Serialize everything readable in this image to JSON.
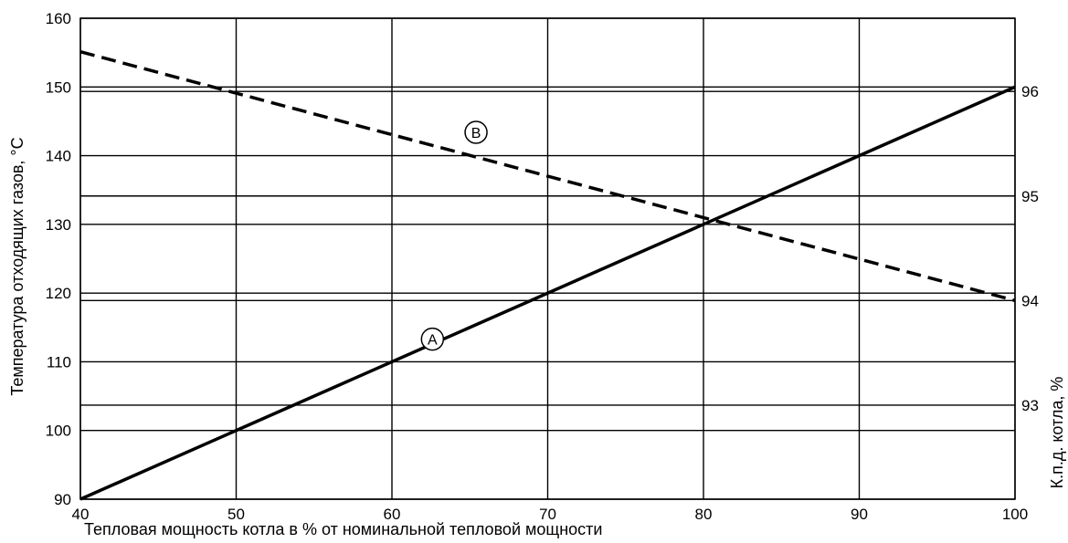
{
  "chart_data": {
    "type": "line",
    "xlabel": "Тепловая мощность котла в % от номинальной тепловой мощности",
    "ylabel_left": "Температура отходящих газов, °C",
    "ylabel_right": "К.п.д. котла, %",
    "xlim": [
      40,
      100
    ],
    "ylim_left": [
      90,
      160
    ],
    "ylim_right": [
      92.1,
      96.7
    ],
    "grid": true,
    "x_ticks": [
      "40",
      "50",
      "60",
      "70",
      "80",
      "90",
      "100"
    ],
    "y_left_ticks": [
      "90",
      "100",
      "110",
      "120",
      "130",
      "140",
      "150",
      "160"
    ],
    "y_right_ticks": [
      "93",
      "94",
      "95",
      "96"
    ],
    "series": [
      {
        "name": "A",
        "axis": "left",
        "style": "solid",
        "x": [
          40,
          100
        ],
        "y": [
          90,
          150
        ]
      },
      {
        "name": "B",
        "axis": "right",
        "style": "dashed",
        "x": [
          40,
          100
        ],
        "y": [
          96.38,
          94.0
        ]
      }
    ],
    "markers": [
      {
        "label": "A",
        "x": 62.6,
        "y_left": 113.3
      },
      {
        "label": "B",
        "x": 65.4,
        "y_left": 143.4
      }
    ]
  }
}
